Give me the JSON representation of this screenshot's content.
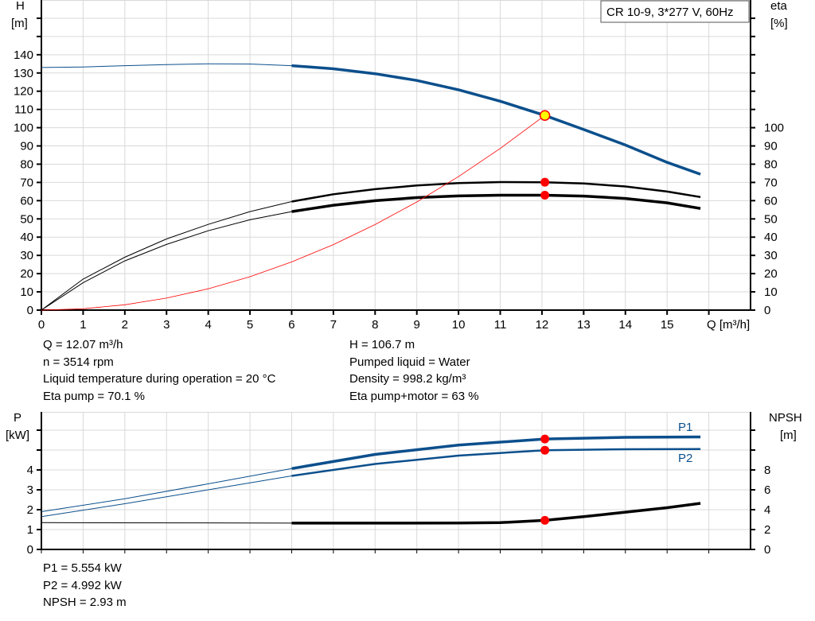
{
  "chart_data": [
    {
      "type": "line",
      "title": "CR 10-9, 3*277 V, 60Hz",
      "xlabel": "Q [m³/h]",
      "ylabel": "H\n[m]",
      "y2label": "eta\n[%]",
      "xlim": [
        0,
        17
      ],
      "ylim": [
        0,
        170
      ],
      "y2lim": [
        0,
        170
      ],
      "xticks": [
        0,
        1,
        2,
        3,
        4,
        5,
        6,
        7,
        8,
        9,
        10,
        11,
        12,
        13,
        14,
        15
      ],
      "yticks": [
        0,
        10,
        20,
        30,
        40,
        50,
        60,
        70,
        80,
        90,
        100,
        110,
        120,
        130,
        140
      ],
      "y2ticks": [
        0,
        10,
        20,
        30,
        40,
        50,
        60,
        70,
        80,
        90,
        100
      ],
      "grid": true,
      "series": [
        {
          "key": "H",
          "axis": "left",
          "color": "#0b4f8c",
          "x": [
            0,
            1,
            2,
            3,
            4,
            5,
            6,
            7,
            8,
            9,
            10,
            11,
            12.07,
            13,
            14,
            15,
            15.8
          ],
          "y": [
            133,
            133.3,
            134,
            134.6,
            135,
            134.9,
            134,
            132.3,
            129.6,
            125.9,
            120.8,
            114.5,
            106.7,
            99,
            90.5,
            81,
            74.5
          ]
        },
        {
          "key": "eta_pump",
          "axis": "right",
          "color": "#000000",
          "x": [
            0,
            1,
            2,
            3,
            4,
            5,
            6,
            7,
            8,
            9,
            10,
            11,
            12.07,
            13,
            14,
            15,
            15.8
          ],
          "y": [
            0,
            17,
            29,
            39,
            47,
            54,
            59.5,
            63.5,
            66.3,
            68.3,
            69.6,
            70.2,
            70.1,
            69.4,
            67.8,
            65,
            62
          ]
        },
        {
          "key": "eta_total",
          "axis": "right",
          "color": "#000000",
          "x": [
            0,
            1,
            2,
            3,
            4,
            5,
            6,
            7,
            8,
            9,
            10,
            11,
            12.07,
            13,
            14,
            15,
            15.8
          ],
          "y": [
            0,
            15,
            27,
            36,
            43.5,
            49.5,
            54,
            57.5,
            60,
            61.7,
            62.6,
            63,
            63,
            62.5,
            61.2,
            58.8,
            55.7
          ]
        },
        {
          "key": "system",
          "axis": "left",
          "color": "#ff0000",
          "x": [
            0,
            1,
            2,
            3,
            4,
            5,
            6,
            7,
            8,
            9,
            10,
            11,
            12.07
          ],
          "y": [
            0,
            0.73,
            2.93,
            6.59,
            11.7,
            18.3,
            26.4,
            35.9,
            46.9,
            59.3,
            73.2,
            88.6,
            106.7
          ]
        }
      ],
      "duty_points": [
        {
          "x": 12.07,
          "y": 106.7,
          "axis": "left",
          "color": "#ffff00"
        },
        {
          "x": 12.07,
          "y": 70.1,
          "axis": "right",
          "color": "#ff0000"
        },
        {
          "x": 12.07,
          "y": 63,
          "axis": "right",
          "color": "#ff0000"
        }
      ]
    },
    {
      "type": "line",
      "ylabel": "P\n[kW]",
      "y2label": "NPSH\n[m]",
      "xlim": [
        0,
        17
      ],
      "ylim": [
        0,
        6.92
      ],
      "y2lim": [
        0,
        13.84
      ],
      "yticks": [
        0,
        1,
        2,
        3,
        4
      ],
      "y2ticks": [
        0,
        2,
        4,
        6,
        8
      ],
      "grid": true,
      "series": [
        {
          "name": "P1",
          "axis": "left",
          "color": "#0b4f8c",
          "x": [
            0,
            2,
            4,
            6,
            8,
            10,
            12.07,
            14,
            15.8
          ],
          "y": [
            1.9,
            2.55,
            3.3,
            4.07,
            4.78,
            5.25,
            5.554,
            5.64,
            5.66
          ]
        },
        {
          "name": "P2",
          "axis": "left",
          "color": "#0b4f8c",
          "x": [
            0,
            2,
            4,
            6,
            8,
            10,
            12.07,
            14,
            15.8
          ],
          "y": [
            1.65,
            2.3,
            3.0,
            3.7,
            4.3,
            4.72,
            4.992,
            5.04,
            5.05
          ]
        },
        {
          "key": "NPSH",
          "axis": "right",
          "color": "#000000",
          "x": [
            0,
            6,
            8,
            10,
            11,
            12.07,
            13,
            14,
            15,
            15.8
          ],
          "y": [
            2.7,
            2.65,
            2.65,
            2.66,
            2.7,
            2.93,
            3.3,
            3.75,
            4.2,
            4.64
          ]
        }
      ],
      "duty_points": [
        {
          "x": 12.07,
          "y": 5.554,
          "axis": "left",
          "color": "#ff0000"
        },
        {
          "x": 12.07,
          "y": 4.992,
          "axis": "left",
          "color": "#ff0000"
        },
        {
          "x": 12.07,
          "y": 2.93,
          "axis": "right",
          "color": "#ff0000"
        }
      ]
    }
  ],
  "info_top": {
    "left": [
      "Q = 12.07 m³/h",
      "n = 3514 rpm",
      "Liquid temperature during operation = 20 °C",
      "Eta pump = 70.1 %"
    ],
    "right": [
      "H = 106.7 m",
      "Pumped liquid = Water",
      "Density = 998.2 kg/m³",
      "Eta pump+motor = 63 %"
    ]
  },
  "info_bottom": [
    "P1 = 5.554 kW",
    "P2 = 4.992 kW",
    "NPSH = 2.93 m"
  ]
}
